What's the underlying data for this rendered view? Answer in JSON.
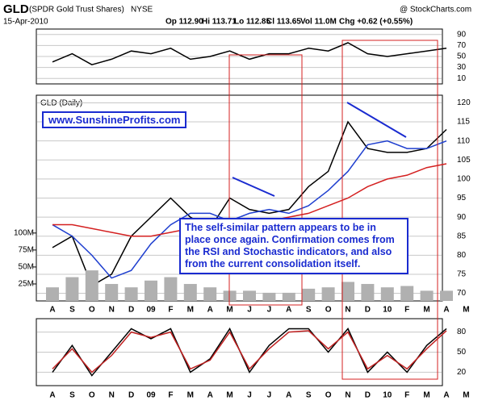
{
  "header": {
    "symbol": "GLD",
    "name": "(SPDR Gold Trust Shares)",
    "exchange": "NYSE",
    "date": "15-Apr-2010",
    "source": "@ StockCharts.com",
    "stats": [
      "Op 112.90",
      "Hi 113.71",
      "Lo 112.85",
      "Cl 113.65",
      "Vol 11.0M",
      "Chg +0.62 (+0.55%)"
    ]
  },
  "chart_data": [
    {
      "type": "line",
      "ylim": [
        0,
        100
      ],
      "yticks": [
        90,
        70,
        50,
        30,
        10
      ],
      "grid": true,
      "series": [
        {
          "color": "#000000",
          "values": [
            40,
            55,
            35,
            45,
            60,
            55,
            65,
            45,
            50,
            60,
            45,
            55,
            55,
            65,
            60,
            75,
            55,
            50,
            55,
            60,
            65
          ]
        }
      ]
    },
    {
      "type": "line",
      "title": "GLD (Daily)",
      "ylim": [
        68,
        122
      ],
      "yticks": [
        120,
        115,
        110,
        105,
        100,
        95,
        90,
        85,
        80,
        75,
        70
      ],
      "grid": true,
      "categories": [
        "A",
        "S",
        "O",
        "N",
        "D",
        "09",
        "F",
        "M",
        "A",
        "M",
        "J",
        "J",
        "A",
        "S",
        "O",
        "N",
        "D",
        "10",
        "F",
        "M",
        "A",
        "M"
      ],
      "series": [
        {
          "color": "#000000",
          "values": [
            82,
            85,
            72,
            75,
            85,
            90,
            95,
            90,
            87,
            95,
            92,
            91,
            92,
            98,
            102,
            115,
            108,
            107,
            107,
            108,
            113,
            null
          ]
        },
        {
          "color": "#1f3fcf",
          "values": [
            88,
            85,
            80,
            74,
            76,
            83,
            88,
            91,
            91,
            89,
            91,
            92,
            91,
            93,
            97,
            102,
            109,
            110,
            108,
            108,
            110,
            null
          ]
        },
        {
          "color": "#d42020",
          "values": [
            88,
            88,
            87,
            86,
            85,
            85,
            86,
            87,
            87,
            87,
            88,
            89,
            90,
            91,
            93,
            95,
            98,
            100,
            101,
            103,
            104,
            null
          ]
        }
      ]
    },
    {
      "type": "bar",
      "ylim": [
        0,
        303000000
      ],
      "color": "#b0b0b0",
      "yticks": [
        {
          "value": 100000000,
          "label": "100M"
        },
        {
          "value": 75000000,
          "label": "75M"
        },
        {
          "value": 50000000,
          "label": "50M"
        },
        {
          "value": 25000000,
          "label": "25M"
        }
      ],
      "values": [
        20000000,
        35000000,
        45000000,
        25000000,
        20000000,
        30000000,
        35000000,
        25000000,
        20000000,
        15000000,
        15000000,
        12000000,
        12000000,
        18000000,
        20000000,
        28000000,
        25000000,
        20000000,
        22000000,
        15000000,
        15000000,
        null
      ]
    },
    {
      "type": "line",
      "ylim": [
        0,
        100
      ],
      "yticks": [
        80,
        50,
        20
      ],
      "grid": true,
      "series": [
        {
          "color": "#000000",
          "values": [
            20,
            60,
            15,
            50,
            85,
            70,
            85,
            20,
            40,
            85,
            20,
            60,
            85,
            85,
            50,
            85,
            20,
            50,
            20,
            60,
            85
          ]
        },
        {
          "color": "#c02020",
          "values": [
            25,
            55,
            20,
            45,
            80,
            72,
            80,
            25,
            38,
            80,
            25,
            55,
            80,
            82,
            55,
            80,
            25,
            45,
            25,
            55,
            82
          ]
        }
      ]
    }
  ],
  "website": "www.SunshineProfits.com",
  "annotation": "The self-similar pattern appears to be in place once again. Confirmation comes from the RSI and Stochastic indicators, and also from the current consolidation itself."
}
